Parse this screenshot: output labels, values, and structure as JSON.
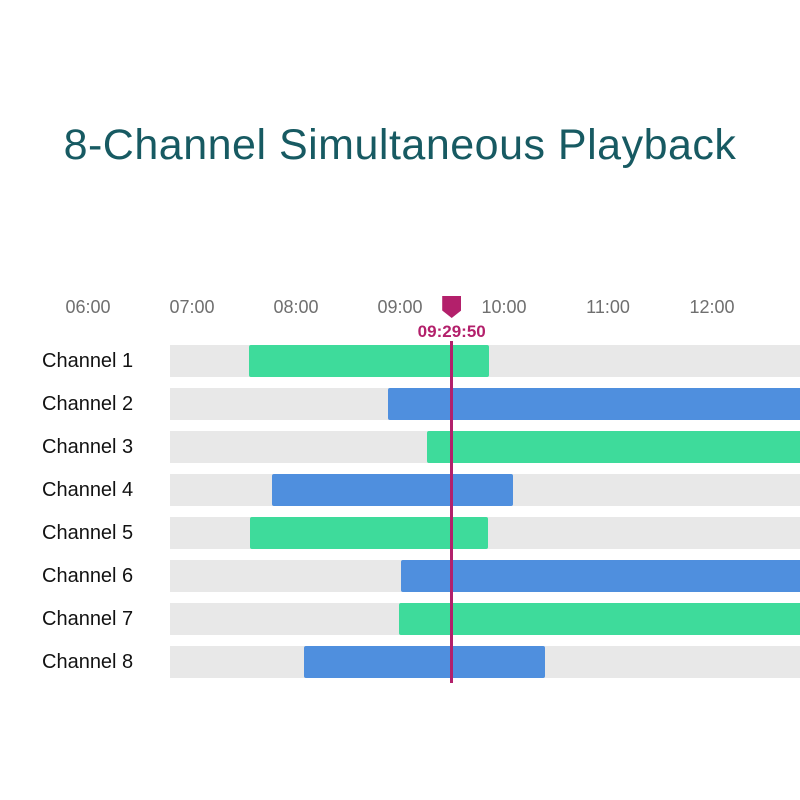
{
  "title": {
    "text": "8-Channel Simultaneous Playback"
  },
  "colors": {
    "title_text": "#175A62",
    "axis_text": "#6F6F6F",
    "channel_text": "#121212",
    "track": "#E8E8E8",
    "green": "#3EDB9B",
    "blue": "#4F8FDE",
    "playhead": "#B3206B"
  },
  "chart_data": {
    "type": "bar",
    "subtype": "gantt-timeline",
    "title": "8-Channel Simultaneous Playback",
    "x_axis": {
      "tick_labels": [
        "06:00",
        "07:00",
        "08:00",
        "09:00",
        "10:00",
        "11:00",
        "12:00"
      ],
      "tick_hours": [
        6,
        7,
        8,
        9,
        10,
        11,
        12
      ],
      "visible_range_hours": [
        5.2,
        12.85
      ],
      "grid": false
    },
    "playhead": {
      "label": "09:29:50",
      "hour": 9.4972
    },
    "series": [
      {
        "label": "Channel 1",
        "color": "green",
        "start_hour": 7.55,
        "end_hour": 9.86,
        "start_time": "07:33",
        "end_time": "09:51",
        "clipped_right": false
      },
      {
        "label": "Channel 2",
        "color": "blue",
        "start_hour": 8.88,
        "end_hour": 12.95,
        "start_time": "08:53",
        "end_time": "12:50",
        "clipped_right": true
      },
      {
        "label": "Channel 3",
        "color": "green",
        "start_hour": 9.26,
        "end_hour": 12.95,
        "start_time": "09:16",
        "end_time": "12:50",
        "clipped_right": true
      },
      {
        "label": "Channel 4",
        "color": "blue",
        "start_hour": 7.77,
        "end_hour": 10.09,
        "start_time": "07:46",
        "end_time": "10:05",
        "clipped_right": false
      },
      {
        "label": "Channel 5",
        "color": "green",
        "start_hour": 7.56,
        "end_hour": 9.85,
        "start_time": "07:33",
        "end_time": "09:51",
        "clipped_right": false
      },
      {
        "label": "Channel 6",
        "color": "blue",
        "start_hour": 9.01,
        "end_hour": 12.95,
        "start_time": "09:01",
        "end_time": "12:50",
        "clipped_right": true
      },
      {
        "label": "Channel 7",
        "color": "green",
        "start_hour": 8.99,
        "end_hour": 12.95,
        "start_time": "08:59",
        "end_time": "12:50",
        "clipped_right": true
      },
      {
        "label": "Channel 8",
        "color": "blue",
        "start_hour": 8.08,
        "end_hour": 10.39,
        "start_time": "08:05",
        "end_time": "10:23",
        "clipped_right": false
      }
    ]
  }
}
